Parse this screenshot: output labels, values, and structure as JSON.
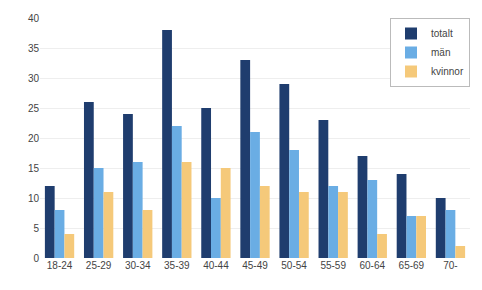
{
  "chart_data": {
    "type": "bar",
    "categories": [
      "18-24",
      "25-29",
      "30-34",
      "35-39",
      "40-44",
      "45-49",
      "50-54",
      "55-59",
      "60-64",
      "65-69",
      "70-"
    ],
    "series": [
      {
        "name": "totalt",
        "color": "#1f3d6e",
        "values": [
          12,
          26,
          24,
          38,
          25,
          33,
          29,
          23,
          17,
          14,
          10
        ]
      },
      {
        "name": "män",
        "color": "#6aade4",
        "values": [
          8,
          15,
          16,
          22,
          10,
          21,
          18,
          12,
          13,
          7,
          8
        ]
      },
      {
        "name": "kvinnor",
        "color": "#f5c97a",
        "values": [
          4,
          11,
          8,
          16,
          15,
          12,
          11,
          11,
          4,
          7,
          2
        ]
      }
    ],
    "ylim": [
      0,
      40
    ],
    "yticks": [
      0,
      5,
      10,
      15,
      20,
      25,
      30,
      35,
      40
    ],
    "grid": true,
    "legend": "upper right"
  }
}
